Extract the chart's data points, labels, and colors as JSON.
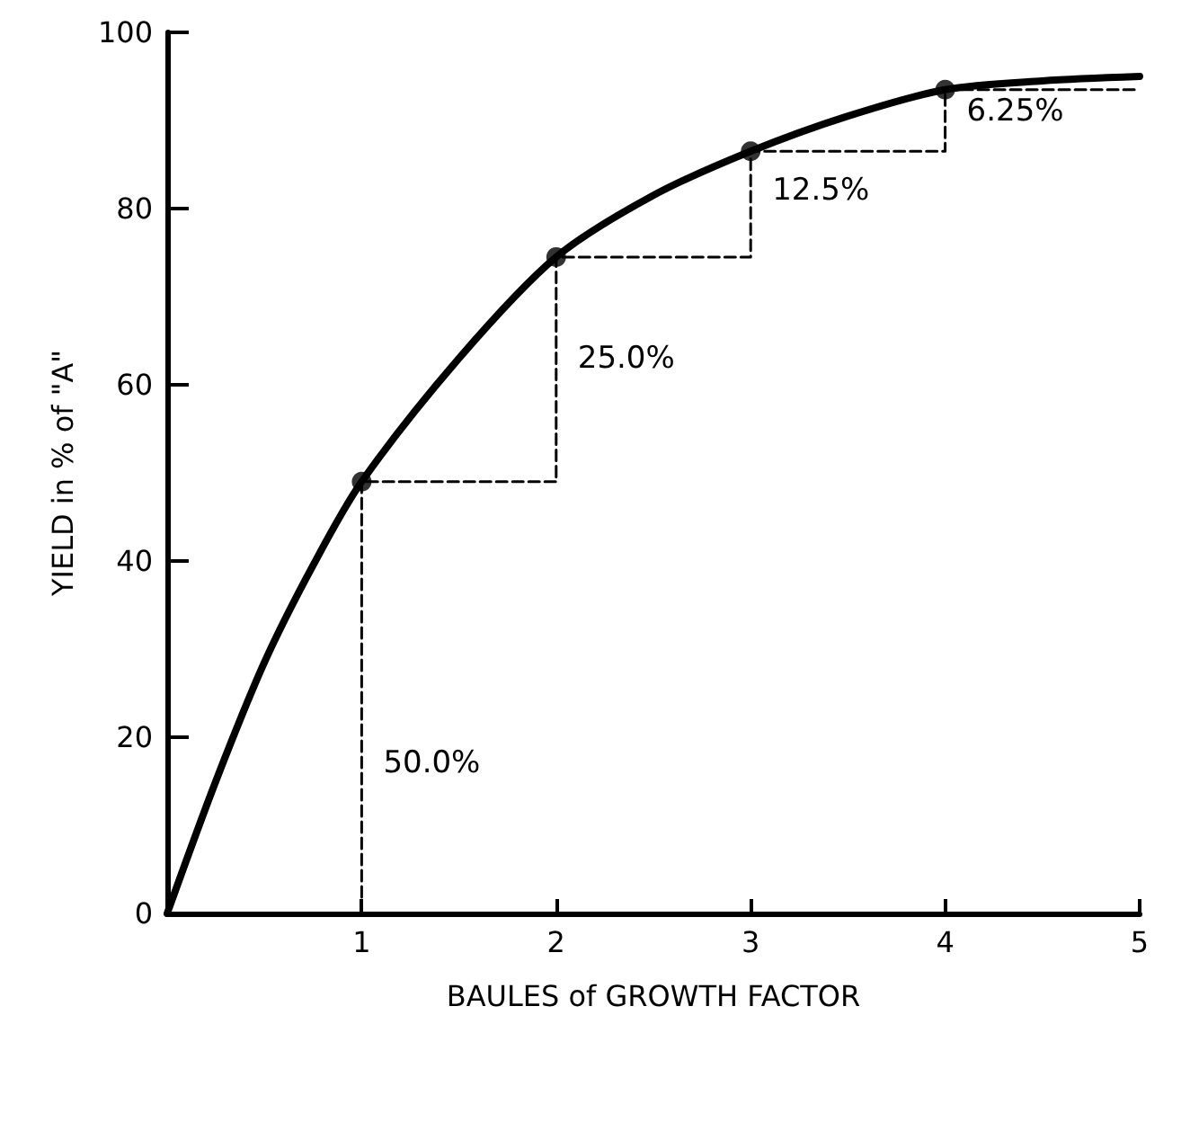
{
  "chart_data": {
    "type": "line",
    "xlabel": "BAULES of GROWTH FACTOR",
    "ylabel": "YIELD in % of \"A\"",
    "xlim": [
      0,
      5
    ],
    "ylim": [
      0,
      100
    ],
    "xticks": [
      1,
      2,
      3,
      4,
      5
    ],
    "yticks": [
      0,
      20,
      40,
      60,
      80,
      100
    ],
    "grid": false,
    "series": [
      {
        "color": "#000000",
        "marker": "none",
        "line_style": "solid",
        "x": [
          0,
          0.25,
          0.5,
          0.75,
          1,
          1.5,
          2,
          2.5,
          3,
          3.5,
          4,
          4.5,
          5
        ],
        "values": [
          0,
          15,
          28.5,
          39.5,
          49,
          63,
          74.5,
          81.5,
          86.5,
          90.5,
          93.5,
          94.5,
          95
        ]
      },
      {
        "color": "#000000",
        "marker": "none",
        "line_style": "dashed",
        "x": [
          1,
          1,
          2,
          2,
          3,
          3,
          4,
          4,
          5
        ],
        "values": [
          0,
          49,
          49,
          74.5,
          74.5,
          86.5,
          86.5,
          93.5,
          93.5
        ]
      },
      {
        "type": "scatter",
        "color": "#000000",
        "marker": "circle",
        "x": [
          1,
          2,
          3,
          4
        ],
        "values": [
          49,
          74.5,
          86.5,
          93.5
        ]
      }
    ],
    "annotations": [
      {
        "text": "50.0%",
        "x": 1,
        "y": 17
      },
      {
        "text": "25.0%",
        "x": 2,
        "y": 63
      },
      {
        "text": "12.5%",
        "x": 3,
        "y": 82
      },
      {
        "text": "6.25%",
        "x": 4,
        "y": 91
      }
    ]
  }
}
